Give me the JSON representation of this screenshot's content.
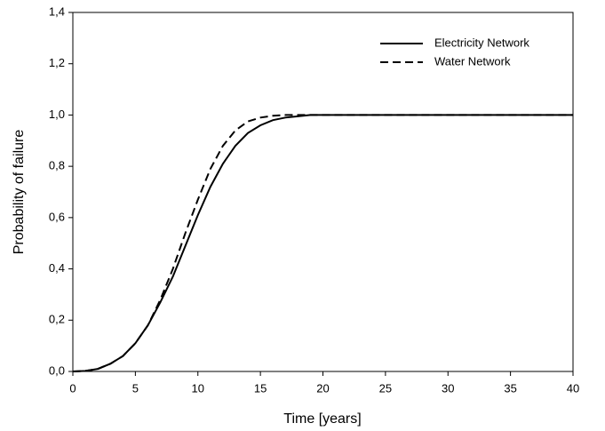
{
  "chart_data": {
    "type": "line",
    "xlabel": "Time [years]",
    "ylabel": "Probability of failure",
    "x": [
      0,
      1,
      2,
      3,
      4,
      5,
      6,
      7,
      8,
      9,
      10,
      11,
      12,
      13,
      14,
      15,
      16,
      17,
      18,
      19,
      20,
      25,
      30,
      35,
      40
    ],
    "series": [
      {
        "name": "Electricity Network",
        "color": "#000000",
        "dash": "solid",
        "values": [
          0,
          0.002,
          0.01,
          0.03,
          0.06,
          0.11,
          0.18,
          0.27,
          0.37,
          0.49,
          0.61,
          0.72,
          0.81,
          0.88,
          0.93,
          0.96,
          0.98,
          0.99,
          0.995,
          1,
          1,
          1,
          1,
          1,
          1
        ]
      },
      {
        "name": "Water Network",
        "color": "#000000",
        "dash": "dashed",
        "values": [
          0,
          0.002,
          0.01,
          0.03,
          0.06,
          0.11,
          0.18,
          0.28,
          0.4,
          0.54,
          0.67,
          0.79,
          0.88,
          0.94,
          0.975,
          0.99,
          0.997,
          1,
          1,
          1,
          1,
          1,
          1,
          1,
          1
        ]
      }
    ],
    "xlim": [
      0,
      40
    ],
    "xticks": [
      0,
      5,
      10,
      15,
      20,
      25,
      30,
      35,
      40
    ],
    "ylim": [
      0,
      1.4
    ],
    "yticks": [
      {
        "value": 0,
        "label": "0,0"
      },
      {
        "value": 0.2,
        "label": "0,2"
      },
      {
        "value": 0.4,
        "label": "0,4"
      },
      {
        "value": 0.6,
        "label": "0,6"
      },
      {
        "value": 0.8,
        "label": "0,8"
      },
      {
        "value": 1,
        "label": "1,0"
      },
      {
        "value": 1.2,
        "label": "1,2"
      },
      {
        "value": 1.4,
        "label": "1,4"
      }
    ],
    "legend": "top-right",
    "grid": false
  }
}
